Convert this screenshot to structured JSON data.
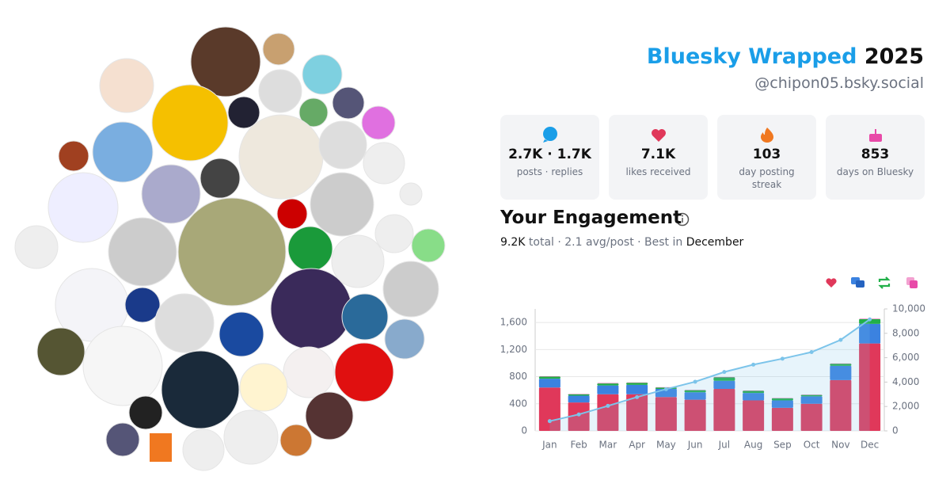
{
  "header": {
    "title": "Bluesky Wrapped",
    "year": "2025",
    "handle": "@chipon05.bsky.social"
  },
  "stats": [
    {
      "value": "2.7K · 1.7K",
      "label": "posts · replies"
    },
    {
      "value": "7.1K",
      "label": "likes received"
    },
    {
      "value": "103",
      "label": "day posting streak"
    },
    {
      "value": "853",
      "label": "days on Bluesky"
    }
  ],
  "engagement": {
    "title": "Your Engagement",
    "total": "9.2K",
    "summary": "total · 2.1 avg/post · Best in",
    "best": "December"
  },
  "chart_data": {
    "type": "bar",
    "stacked": true,
    "categories": [
      "Jan",
      "Feb",
      "Mar",
      "Apr",
      "May",
      "Jun",
      "Jul",
      "Aug",
      "Sep",
      "Oct",
      "Nov",
      "Dec"
    ],
    "series": [
      {
        "color": "#e0385a",
        "values": [
          640,
          420,
          540,
          540,
          500,
          460,
          620,
          450,
          340,
          400,
          750,
          1290
        ]
      },
      {
        "color": "#3b82e0",
        "values": [
          130,
          100,
          130,
          140,
          120,
          110,
          120,
          110,
          110,
          110,
          210,
          290
        ]
      },
      {
        "color": "#22b04a",
        "values": [
          30,
          20,
          30,
          30,
          20,
          30,
          50,
          30,
          30,
          20,
          30,
          70
        ]
      },
      {
        "color": "#e84aa8",
        "values": [
          5,
          5,
          5,
          5,
          5,
          5,
          5,
          5,
          5,
          5,
          5,
          5
        ]
      },
      {
        "type": "line",
        "axis": "y2",
        "color": "#7cc4ea",
        "values": [
          800,
          1350,
          2050,
          2770,
          3420,
          4030,
          4830,
          5430,
          5920,
          6460,
          7460,
          9140
        ]
      }
    ],
    "ylim": [
      0,
      1800
    ],
    "yticks": [
      0,
      400,
      800,
      {
        "value": 1200,
        "label": "1,200"
      },
      {
        "value": 1600,
        "label": "1,600"
      }
    ],
    "y2lim": [
      0,
      10000
    ],
    "y2ticks": [
      0,
      {
        "value": 2000,
        "label": "2,000"
      },
      {
        "value": 4000,
        "label": "4,000"
      },
      {
        "value": 6000,
        "label": "6,000"
      },
      {
        "value": 8000,
        "label": "8,000"
      },
      {
        "value": 10000,
        "label": "10,000"
      }
    ],
    "grid": true
  }
}
